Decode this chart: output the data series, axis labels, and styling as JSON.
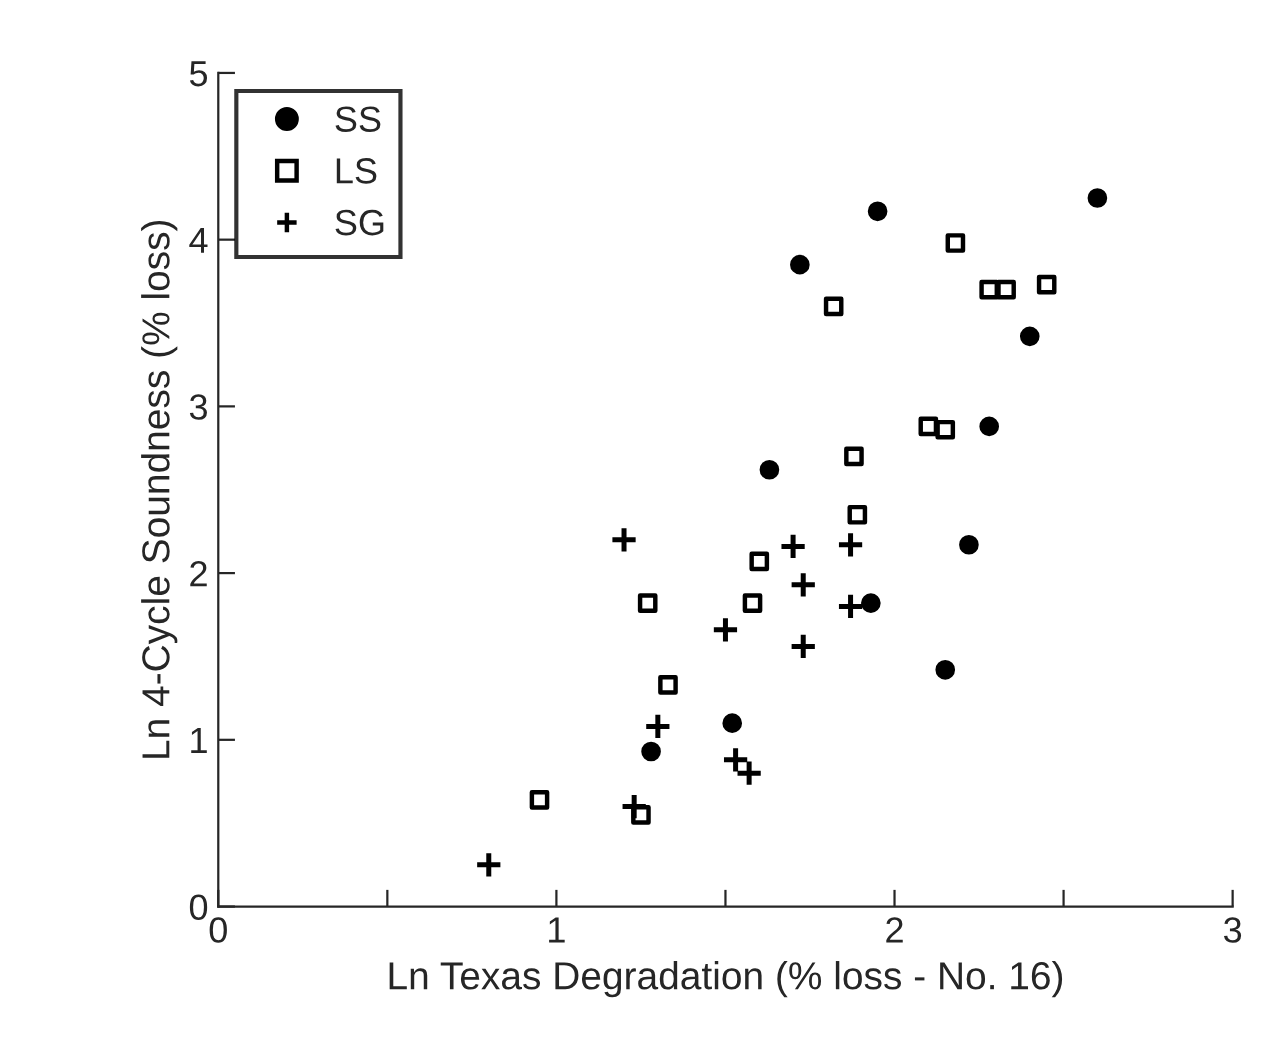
{
  "chart_data": {
    "type": "scatter",
    "xlabel": "Ln Texas Degradation (% loss - No. 16)",
    "ylabel": "Ln 4-Cycle Soundness (% loss)",
    "xlim": [
      0,
      3
    ],
    "xticks": [
      0,
      {
        "value": 0.5,
        "label": null
      },
      1,
      {
        "value": 1.5,
        "label": null
      },
      2,
      {
        "value": 2.5,
        "label": null
      },
      3
    ],
    "ylim": [
      0,
      5
    ],
    "yticks": [
      0,
      1,
      2,
      3,
      4,
      5
    ],
    "legend": "top left",
    "grid": false,
    "series": [
      {
        "name": "SS",
        "color": "#000000",
        "marker": "circle",
        "x": [
          1.72,
          1.95,
          2.6,
          2.4,
          2.28,
          1.63,
          2.22,
          1.93,
          2.15,
          1.52,
          1.28
        ],
        "values": [
          3.85,
          4.17,
          4.25,
          3.42,
          2.88,
          2.62,
          2.17,
          1.82,
          1.42,
          1.1,
          0.93
        ]
      },
      {
        "name": "LS",
        "color": "#000000",
        "marker": "square",
        "x": [
          2.18,
          1.82,
          2.28,
          2.33,
          2.45,
          2.1,
          2.15,
          1.88,
          1.89,
          1.6,
          1.27,
          1.58,
          1.33,
          0.95,
          1.25
        ],
        "values": [
          3.98,
          3.6,
          3.7,
          3.7,
          3.73,
          2.88,
          2.86,
          2.7,
          2.35,
          2.07,
          1.82,
          1.82,
          1.33,
          0.64,
          0.55
        ]
      },
      {
        "name": "SG",
        "color": "#000000",
        "marker": "cross",
        "x": [
          1.2,
          1.7,
          1.87,
          1.73,
          1.5,
          1.87,
          1.73,
          1.3,
          1.53,
          1.57,
          1.23,
          0.8
        ],
        "values": [
          2.2,
          2.16,
          2.17,
          1.93,
          1.66,
          1.8,
          1.56,
          1.08,
          0.88,
          0.8,
          0.6,
          0.25
        ]
      }
    ]
  }
}
